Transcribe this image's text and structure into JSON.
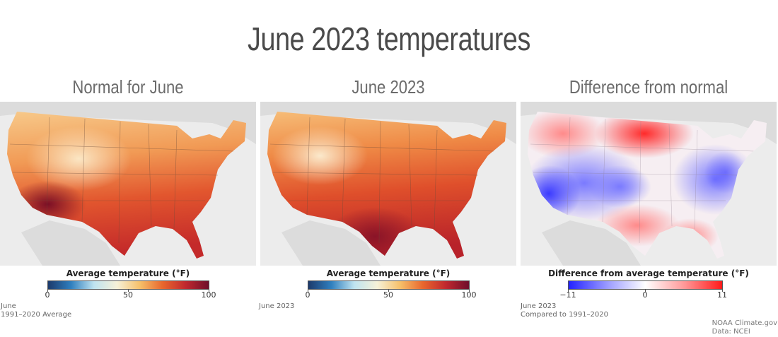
{
  "title": "June 2023 temperatures",
  "panels": [
    {
      "title": "Normal for June",
      "legend_title": "Average temperature (°F)",
      "scale": {
        "min": 0,
        "mid": 50,
        "max": 100,
        "ticks": [
          "0",
          "50",
          "100"
        ],
        "colors": [
          "#1d3a6b",
          "#2f7fbf",
          "#bfe3f0",
          "#f6f1d8",
          "#f6c06a",
          "#e8662d",
          "#c0282e",
          "#6e0f2c"
        ]
      },
      "note_line1": "June",
      "note_line2": "1991–2020 Average"
    },
    {
      "title": "June 2023",
      "legend_title": "Average temperature (°F)",
      "scale": {
        "min": 0,
        "mid": 50,
        "max": 100,
        "ticks": [
          "0",
          "50",
          "100"
        ],
        "colors": [
          "#1d3a6b",
          "#2f7fbf",
          "#bfe3f0",
          "#f6f1d8",
          "#f6c06a",
          "#e8662d",
          "#c0282e",
          "#6e0f2c"
        ]
      },
      "note_line1": "June 2023",
      "note_line2": ""
    },
    {
      "title": "Difference from normal",
      "legend_title": "Difference from average temperature (°F)",
      "scale": {
        "min": -11,
        "mid": 0,
        "max": 11,
        "ticks": [
          "−11",
          "0",
          "11"
        ],
        "colors": [
          "#2222ff",
          "#9a9aff",
          "#ffffff",
          "#ff9a9a",
          "#ff1a1a"
        ]
      },
      "note_line1": "June 2023",
      "note_line2": "Compared to 1991–2020"
    }
  ],
  "credit_line1": "NOAA Climate.gov",
  "credit_line2": "Data: NCEI",
  "colors": {
    "land_background": "#ececec",
    "neighbor_land": "#d9d9d9",
    "state_lines": "#6a4a3a"
  }
}
